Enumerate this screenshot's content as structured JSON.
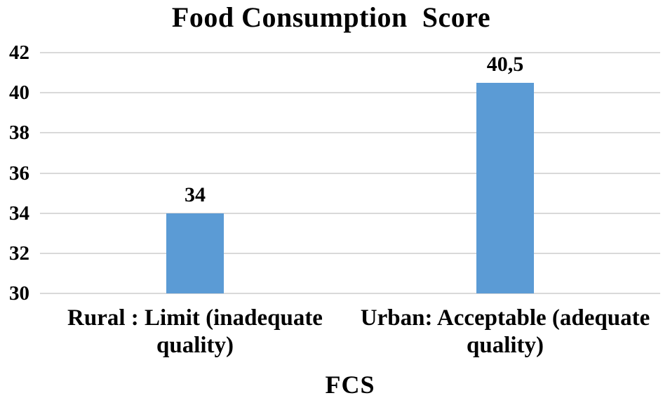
{
  "chart_data": {
    "type": "bar",
    "title": "Food Consumption  Score",
    "xlabel": "FCS",
    "ylabel": "",
    "categories": [
      "Rural : Limit (inadequate quality)",
      "Urban: Acceptable (adequate quality)"
    ],
    "values": [
      34,
      40.5
    ],
    "value_labels": [
      "34",
      "40,5"
    ],
    "y_ticks": [
      30,
      32,
      34,
      36,
      38,
      40,
      42
    ],
    "ylim": [
      30,
      42
    ],
    "grid": true,
    "legend": "none",
    "bar_color": "#5B9BD5",
    "gridline_color": "#D9D9D9",
    "text_color": "#000000",
    "background_color": "#FFFFFF"
  }
}
